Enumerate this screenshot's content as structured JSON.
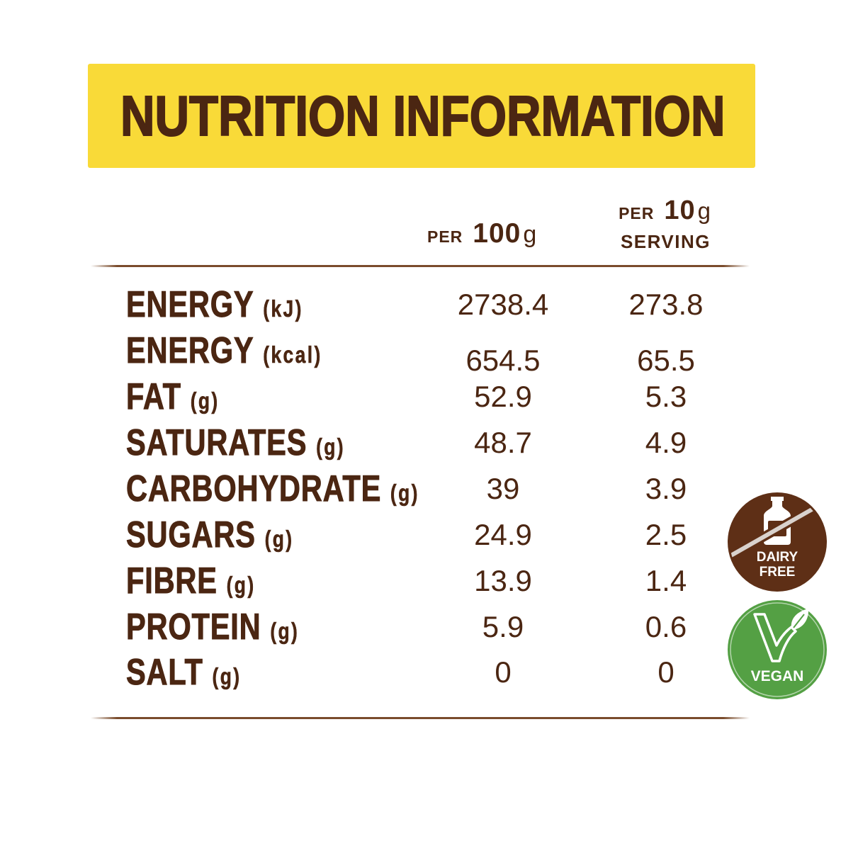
{
  "title": "NUTRITION INFORMATION",
  "columns": {
    "per_100g": {
      "prefix": "PER",
      "amount": "100",
      "unit": "g"
    },
    "per_serving": {
      "prefix": "PER",
      "amount": "10",
      "unit": "g",
      "suffix": "SERVING"
    }
  },
  "rows": [
    {
      "name": "ENERGY",
      "unit": "(kJ)",
      "per_100g": "2738.4",
      "per_serving": "273.8"
    },
    {
      "name": "ENERGY",
      "unit": "(kcal)",
      "per_100g": "654.5",
      "per_serving": "65.5"
    },
    {
      "name": "FAT",
      "unit": "(g)",
      "per_100g": "52.9",
      "per_serving": "5.3"
    },
    {
      "name": "SATURATES",
      "unit": "(g)",
      "per_100g": "48.7",
      "per_serving": "4.9"
    },
    {
      "name": "CARBOHYDRATE",
      "unit": "(g)",
      "per_100g": "39",
      "per_serving": "3.9"
    },
    {
      "name": "SUGARS",
      "unit": "(g)",
      "per_100g": "24.9",
      "per_serving": "2.5"
    },
    {
      "name": "FIBRE",
      "unit": "(g)",
      "per_100g": "13.9",
      "per_serving": "1.4"
    },
    {
      "name": "PROTEIN",
      "unit": "(g)",
      "per_100g": "5.9",
      "per_serving": "0.6"
    },
    {
      "name": "SALT",
      "unit": "(g)",
      "per_100g": "0",
      "per_serving": "0"
    }
  ],
  "badges": {
    "dairy_free": {
      "icon": "milk-bottle-crossed-icon",
      "lines": [
        "DAIRY",
        "FREE"
      ]
    },
    "vegan": {
      "icon": "vegan-v-leaf-icon",
      "label": "VEGAN"
    }
  },
  "colors": {
    "text_brown": "#4b2612",
    "banner_yellow": "#f9da38",
    "divider_brown": "#7a4c2c",
    "dairy_badge_brown": "#5e2f16",
    "vegan_badge_green": "#54a044"
  }
}
